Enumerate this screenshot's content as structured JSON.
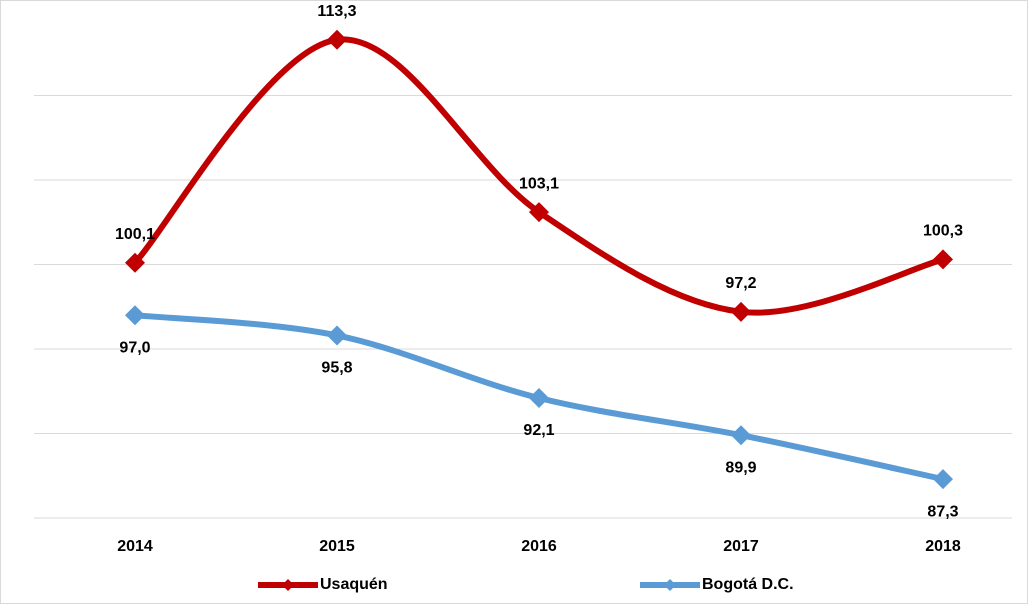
{
  "chart_data": {
    "type": "line",
    "categories": [
      "2014",
      "2015",
      "2016",
      "2017",
      "2018"
    ],
    "series": [
      {
        "name": "Usaquén",
        "color": "#c00000",
        "values": [
          100.1,
          113.3,
          103.1,
          97.2,
          100.3
        ],
        "value_labels": [
          "100,1",
          "113,3",
          "103,1",
          "97,2",
          "100,3"
        ]
      },
      {
        "name": "Bogotá D.C.",
        "color": "#5b9bd5",
        "values": [
          97.0,
          95.8,
          92.1,
          89.9,
          87.3
        ],
        "value_labels": [
          "97,0",
          "95,8",
          "92,1",
          "89,9",
          "87,3"
        ]
      }
    ],
    "ylim": [
      85,
      115
    ],
    "yticks": [
      85,
      90,
      95,
      100,
      105,
      110
    ],
    "grid": true,
    "legend": "bottom"
  }
}
